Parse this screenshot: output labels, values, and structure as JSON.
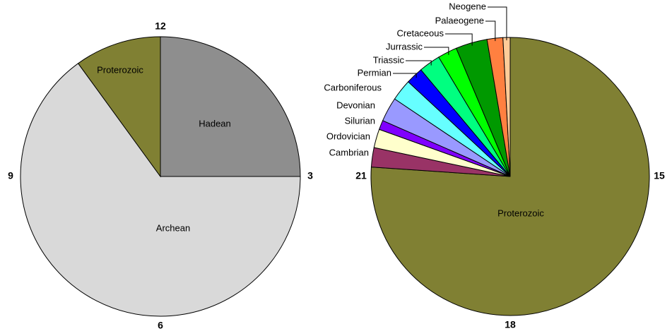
{
  "chart_data": [
    {
      "type": "pie",
      "categories": [
        "Hadean",
        "Archean",
        "Proterozoic"
      ],
      "values": [
        3,
        7.8,
        1.2
      ],
      "colors": [
        "#8e8e8e",
        "#d9d9d9",
        "#808033"
      ],
      "hour_labels": [
        {
          "value": 0,
          "label": "12"
        },
        {
          "value": 3,
          "label": "3"
        },
        {
          "value": 6,
          "label": "6"
        },
        {
          "value": 9,
          "label": "9"
        }
      ]
    },
    {
      "type": "pie",
      "categories": [
        "Proterozoic",
        "Cambrian",
        "Ordovician",
        "Silurian",
        "Devonian",
        "Carboniferous",
        "Permian",
        "Triassic",
        "Jurrassic",
        "Cretaceous",
        "Palaeogene",
        "Neogene"
      ],
      "values": [
        9.13,
        0.27,
        0.26,
        0.13,
        0.34,
        0.3,
        0.24,
        0.3,
        0.27,
        0.44,
        0.22,
        0.1
      ],
      "colors": [
        "#808033",
        "#993366",
        "#ffffcc",
        "#8000ff",
        "#9999ff",
        "#66ffff",
        "#0000ff",
        "#00ff80",
        "#00ff00",
        "#009900",
        "#ff8040",
        "#ffcc99"
      ],
      "hour_labels": [
        {
          "value": 3,
          "label": "15"
        },
        {
          "value": 6,
          "label": "18"
        },
        {
          "value": 9,
          "label": "21"
        }
      ]
    }
  ]
}
